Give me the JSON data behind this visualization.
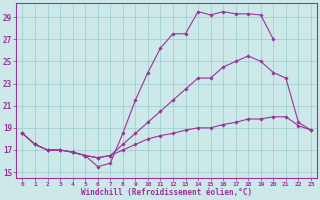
{
  "xlabel": "Windchill (Refroidissement éolien,°C)",
  "xlim_min": -0.5,
  "xlim_max": 23.5,
  "ylim_min": 14.5,
  "ylim_max": 30.3,
  "yticks": [
    15,
    17,
    19,
    21,
    23,
    25,
    27,
    29
  ],
  "xticks": [
    0,
    1,
    2,
    3,
    4,
    5,
    6,
    7,
    8,
    9,
    10,
    11,
    12,
    13,
    14,
    15,
    16,
    17,
    18,
    19,
    20,
    21,
    22,
    23
  ],
  "bg_color": "#cce8e8",
  "grid_color": "#99cccc",
  "line_color": "#993399",
  "line1_x": [
    0,
    1,
    2,
    3,
    4,
    5,
    6,
    7,
    8,
    9,
    10,
    11,
    12,
    13,
    14,
    15,
    16,
    17,
    18,
    19,
    20
  ],
  "line1_y": [
    18.5,
    17.5,
    17.0,
    17.0,
    16.8,
    16.5,
    15.5,
    15.8,
    18.5,
    21.5,
    24.0,
    26.2,
    27.5,
    27.5,
    29.5,
    29.2,
    29.5,
    29.3,
    29.3,
    29.2,
    27.0
  ],
  "line2_x": [
    0,
    1,
    2,
    3,
    4,
    5,
    6,
    7,
    8,
    9,
    10,
    11,
    12,
    13,
    14,
    15,
    16,
    17,
    18,
    19,
    20,
    21,
    22,
    23
  ],
  "line2_y": [
    18.5,
    17.5,
    17.0,
    17.0,
    16.8,
    16.5,
    16.3,
    16.5,
    17.5,
    18.5,
    19.5,
    20.5,
    21.5,
    22.5,
    23.5,
    23.5,
    24.5,
    25.0,
    25.5,
    25.0,
    24.0,
    23.5,
    19.5,
    18.8
  ],
  "line3_x": [
    0,
    1,
    2,
    3,
    4,
    5,
    6,
    7,
    8,
    9,
    10,
    11,
    12,
    13,
    14,
    15,
    16,
    17,
    18,
    19,
    20,
    21,
    22,
    23
  ],
  "line3_y": [
    18.5,
    17.5,
    17.0,
    17.0,
    16.8,
    16.5,
    16.3,
    16.5,
    17.0,
    17.5,
    18.0,
    18.3,
    18.5,
    18.8,
    19.0,
    19.0,
    19.3,
    19.5,
    19.8,
    19.8,
    20.0,
    20.0,
    19.2,
    18.8
  ]
}
